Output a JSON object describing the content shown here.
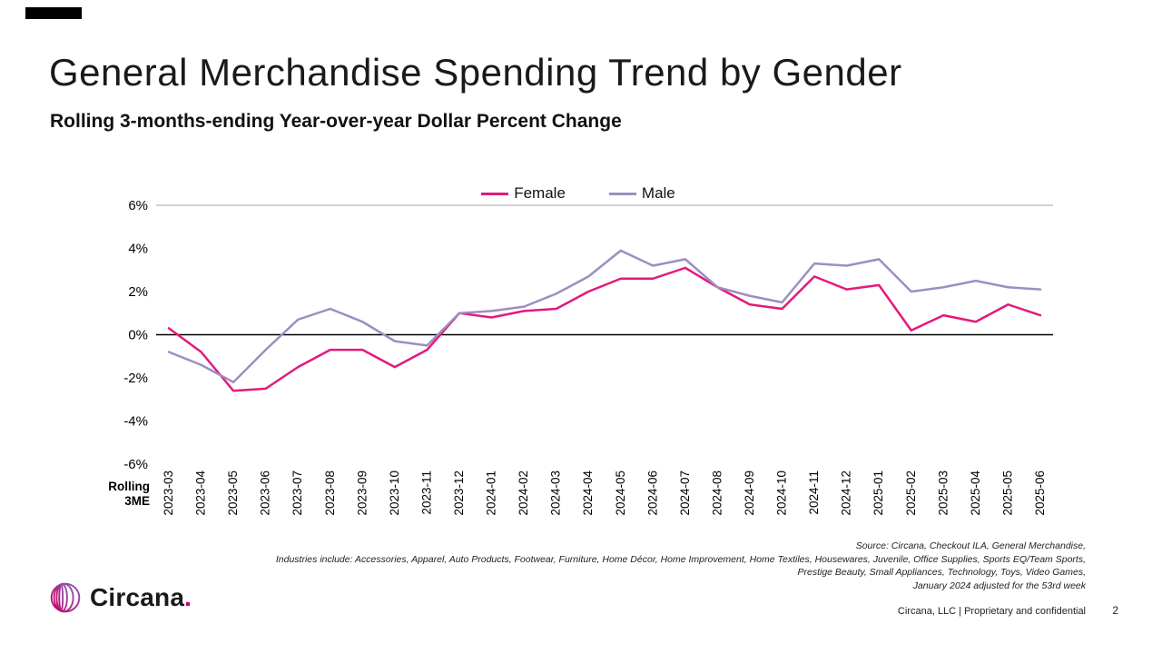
{
  "slide": {
    "title": "General Merchandise Spending Trend by Gender",
    "subtitle": "Rolling 3-months-ending Year-over-year Dollar Percent Change",
    "axis_caption_line1": "Rolling",
    "axis_caption_line2": "3ME",
    "logo_text": "Circana",
    "logo_period": ".",
    "confidential": "Circana, LLC |  Proprietary and confidential",
    "page_number": "2"
  },
  "source_notes": [
    "Source: Circana, Checkout ILA, General Merchandise,",
    "Industries include: Accessories, Apparel, Auto Products, Footwear, Furniture, Home Décor, Home Improvement, Home Textiles, Housewares, Juvenile, Office Supplies, Sports EQ/Team Sports,",
    "Prestige Beauty, Small Appliances, Technology, Toys, Video Games,",
    "January 2024 adjusted for the 53rd week"
  ],
  "chart_data": {
    "type": "line",
    "title": "General Merchandise Spending Trend by Gender",
    "subtitle": "Rolling 3-months-ending Year-over-year Dollar Percent Change",
    "xlabel": "Rolling 3ME",
    "ylabel": "",
    "ylim": [
      -6,
      6
    ],
    "yticks": [
      6,
      4,
      2,
      0,
      -2,
      -4,
      -6
    ],
    "ytick_format": "{v}%",
    "grid": "top border and bold zero line only",
    "legend_position": "top-center",
    "categories": [
      "2023-03",
      "2023-04",
      "2023-05",
      "2023-06",
      "2023-07",
      "2023-08",
      "2023-09",
      "2023-10",
      "2023-11",
      "2023-12",
      "2024-01",
      "2024-02",
      "2024-03",
      "2024-04",
      "2024-05",
      "2024-06",
      "2024-07",
      "2024-08",
      "2024-09",
      "2024-10",
      "2024-11",
      "2024-12",
      "2025-01",
      "2025-02",
      "2025-03",
      "2025-04",
      "2025-05",
      "2025-06"
    ],
    "series": [
      {
        "name": "Female",
        "color": "#e3197d",
        "values": [
          0.3,
          -0.8,
          -2.6,
          -2.5,
          -1.5,
          -0.7,
          -0.7,
          -1.5,
          -0.7,
          1.0,
          0.8,
          1.1,
          1.2,
          2.0,
          2.6,
          2.6,
          3.1,
          2.2,
          1.4,
          1.2,
          2.7,
          2.1,
          2.3,
          0.2,
          0.9,
          0.6,
          1.4,
          0.9
        ]
      },
      {
        "name": "Male",
        "color": "#9d8ec0",
        "values": [
          -0.8,
          -1.4,
          -2.2,
          -0.7,
          0.7,
          1.2,
          0.6,
          -0.3,
          -0.5,
          1.0,
          1.1,
          1.3,
          1.9,
          2.7,
          3.9,
          3.2,
          3.5,
          2.2,
          1.8,
          1.5,
          3.3,
          3.2,
          3.5,
          2.0,
          2.2,
          2.5,
          2.2,
          2.1
        ]
      }
    ]
  }
}
